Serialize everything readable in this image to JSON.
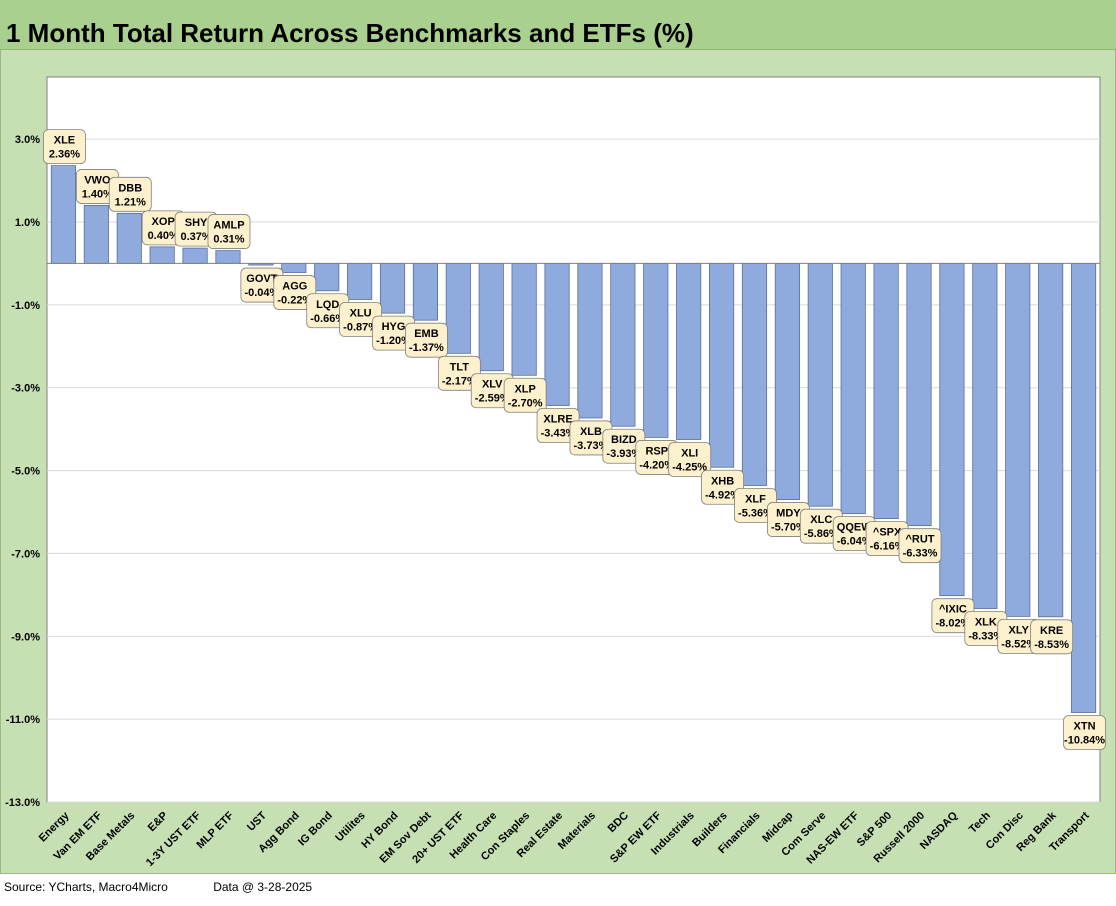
{
  "title": "1 Month Total Return Across Benchmarks and ETFs (%)",
  "footer": {
    "source": "Source: YCharts, Macro4Micro",
    "date": "Data @ 3-28-2025"
  },
  "colors": {
    "bar": "#8faadc",
    "bar_edge": "#5a6f9a",
    "label_box": "#fdf0cc",
    "plot_bg": "#ffffff",
    "frame_bg": "#c6e0b4",
    "title_bg": "#a9d08e"
  },
  "chart_data": {
    "type": "bar",
    "title": "1 Month Total Return Across Benchmarks and ETFs (%)",
    "ylim": [
      -13.0,
      4.5
    ],
    "yticks": [
      3.0,
      1.0,
      -1.0,
      -3.0,
      -5.0,
      -7.0,
      -9.0,
      -11.0,
      -13.0
    ],
    "ytick_labels": [
      "3.0%",
      "1.0%",
      "-1.0%",
      "-3.0%",
      "-5.0%",
      "-7.0%",
      "-9.0%",
      "-11.0%",
      "-13.0%"
    ],
    "grid": true,
    "categories": [
      "Energy",
      "Van EM ETF",
      "Base Metals",
      "E&P",
      "1-3Y UST ETF",
      "MLP ETF",
      "UST",
      "Agg Bond",
      "IG Bond",
      "Utilites",
      "HY Bond",
      "EM Sov Debt",
      "20+ UST ETF",
      "Health Care",
      "Con Staples",
      "Real Estate",
      "Materials",
      "BDC",
      "S&P EW ETF",
      "Industrials",
      "Builders",
      "Financials",
      "Midcap",
      "Com Serve",
      "NAS-EW ETF",
      "S&P 500",
      "Russell 2000",
      "NASDAQ",
      "Tech",
      "Con Disc",
      "Reg Bank",
      "Transport"
    ],
    "tickers": [
      "XLE",
      "VWO",
      "DBB",
      "XOP",
      "SHY",
      "AMLP",
      "GOVT",
      "AGG",
      "LQD",
      "XLU",
      "HYG",
      "EMB",
      "TLT",
      "XLV",
      "XLP",
      "XLRE",
      "XLB",
      "BIZD",
      "RSP",
      "XLI",
      "XHB",
      "XLF",
      "MDY",
      "XLC",
      "QQEW",
      "^SPX",
      "^RUT",
      "^IXIC",
      "XLK",
      "XLY",
      "KRE",
      "XTN"
    ],
    "values": [
      2.36,
      1.4,
      1.21,
      0.4,
      0.37,
      0.31,
      -0.04,
      -0.22,
      -0.66,
      -0.87,
      -1.2,
      -1.37,
      -2.17,
      -2.59,
      -2.7,
      -3.43,
      -3.73,
      -3.93,
      -4.2,
      -4.25,
      -4.92,
      -5.36,
      -5.7,
      -5.86,
      -6.04,
      -6.16,
      -6.33,
      -8.02,
      -8.33,
      -8.52,
      -8.53,
      -10.84
    ],
    "value_labels": [
      "2.36%",
      "1.40%",
      "1.21%",
      "0.40%",
      "0.37%",
      "0.31%",
      "-0.04%",
      "-0.22%",
      "-0.66%",
      "-0.87%",
      "-1.20%",
      "-1.37%",
      "-2.17%",
      "-2.59%",
      "-2.70%",
      "-3.43%",
      "-3.73%",
      "-3.93%",
      "-4.20%",
      "-4.25%",
      "-4.92%",
      "-5.36%",
      "-5.70%",
      "-5.86%",
      "-6.04%",
      "-6.16%",
      "-6.33%",
      "-8.02%",
      "-8.33%",
      "-8.52%",
      "-8.53%",
      "-10.84%"
    ]
  }
}
